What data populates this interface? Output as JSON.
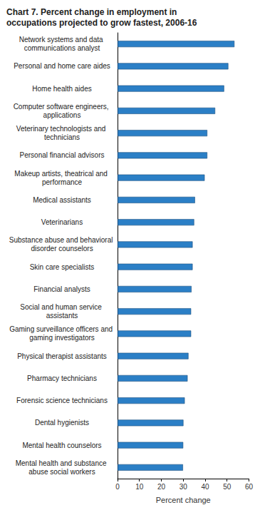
{
  "chart_data": {
    "type": "bar",
    "orientation": "horizontal",
    "title": "Chart 7. Percent change in employment in occupations projected to grow fastest, 2006-16",
    "categories": [
      "Network systems and data communications analyst",
      "Personal and home care aides",
      "Home health aides",
      "Computer software engineers, applications",
      "Veterinary technologists and technicians",
      "Personal financial advisors",
      "Makeup artists, theatrical and performance",
      "Medical assistants",
      "Veterinarians",
      "Substance abuse and behavioral disorder counselors",
      "Skin care specialists",
      "Financial analysts",
      "Social and human service assistants",
      "Gaming surveillance officers and gaming investigators",
      "Physical therapist assistants",
      "Pharmacy technicians",
      "Forensic science technicians",
      "Dental hygienists",
      "Mental health counselors",
      "Mental health and substance abuse social workers"
    ],
    "values": [
      53.4,
      50.6,
      48.7,
      44.6,
      41.0,
      41.0,
      39.8,
      35.4,
      35.0,
      34.3,
      34.3,
      33.8,
      33.6,
      33.6,
      32.4,
      32.0,
      30.7,
      30.1,
      30.0,
      29.9
    ],
    "color": "#2b7fc6",
    "xlabel": "Percent change",
    "xlim": [
      0,
      60
    ],
    "xticks": [
      0,
      10,
      20,
      30,
      40,
      50,
      60
    ],
    "grid": false
  }
}
